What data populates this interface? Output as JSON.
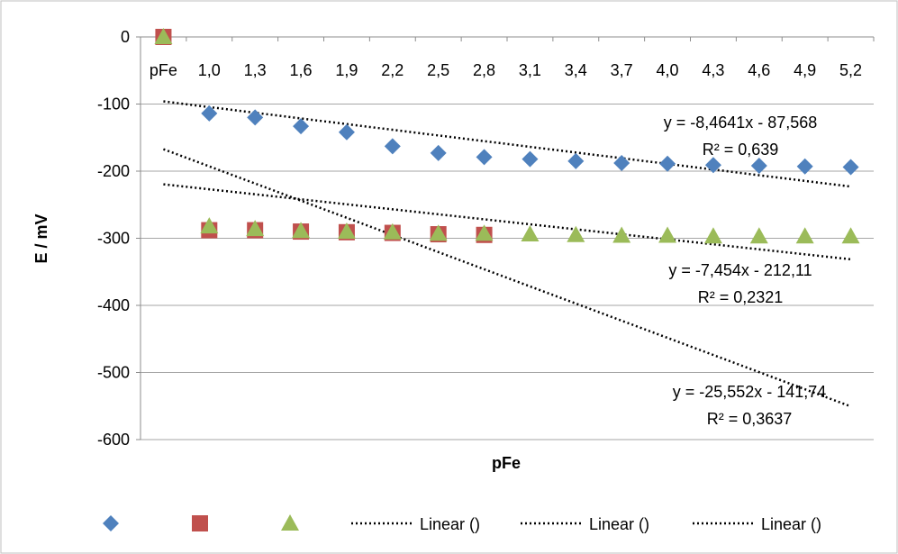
{
  "chart_data": {
    "type": "scatter",
    "xlabel": "pFe",
    "ylabel": "E / mV",
    "ylim": [
      -600,
      0
    ],
    "yticks": [
      0,
      -100,
      -200,
      -300,
      -400,
      -500,
      -600
    ],
    "categories": [
      "pFe",
      "1,0",
      "1,3",
      "1,6",
      "1,9",
      "2,2",
      "2,5",
      "2,8",
      "3,1",
      "3,4",
      "3,7",
      "4,0",
      "4,3",
      "4,6",
      "4,9",
      "5,2"
    ],
    "grid": true,
    "legend_position": "bottom",
    "series": [
      {
        "marker": "diamond",
        "color": "#4F81BD",
        "values": [
          null,
          -114,
          -120,
          -133,
          -142,
          -163,
          -173,
          -179,
          -182,
          -185,
          -188,
          -189,
          -191,
          -192,
          -193,
          -194
        ]
      },
      {
        "marker": "square",
        "color": "#C0504D",
        "values": [
          0,
          -288,
          -288,
          -290,
          -291,
          -292,
          -294,
          -295,
          null,
          null,
          null,
          null,
          null,
          null,
          null,
          null
        ]
      },
      {
        "marker": "triangle",
        "color": "#9BBB59",
        "values": [
          0,
          -282,
          -286,
          -289,
          -290,
          -291,
          -293,
          -293,
          -294,
          -295,
          -296,
          -296,
          -297,
          -297,
          -297,
          -297
        ]
      }
    ],
    "trendlines": [
      {
        "legend_label": "Linear ()",
        "slope": -8.4641,
        "intercept": -87.568,
        "equation": "y = -8,4641x - 87,568",
        "r2": "R² = 0,639"
      },
      {
        "legend_label": "Linear ()",
        "slope": -25.552,
        "intercept": -141.74,
        "equation": "y = -25,552x - 141,74",
        "r2": "R² = 0,3637"
      },
      {
        "legend_label": "Linear ()",
        "slope": -7.454,
        "intercept": -212.11,
        "equation": "y = -7,454x - 212,11",
        "r2": "R² = 0,2321"
      }
    ]
  }
}
